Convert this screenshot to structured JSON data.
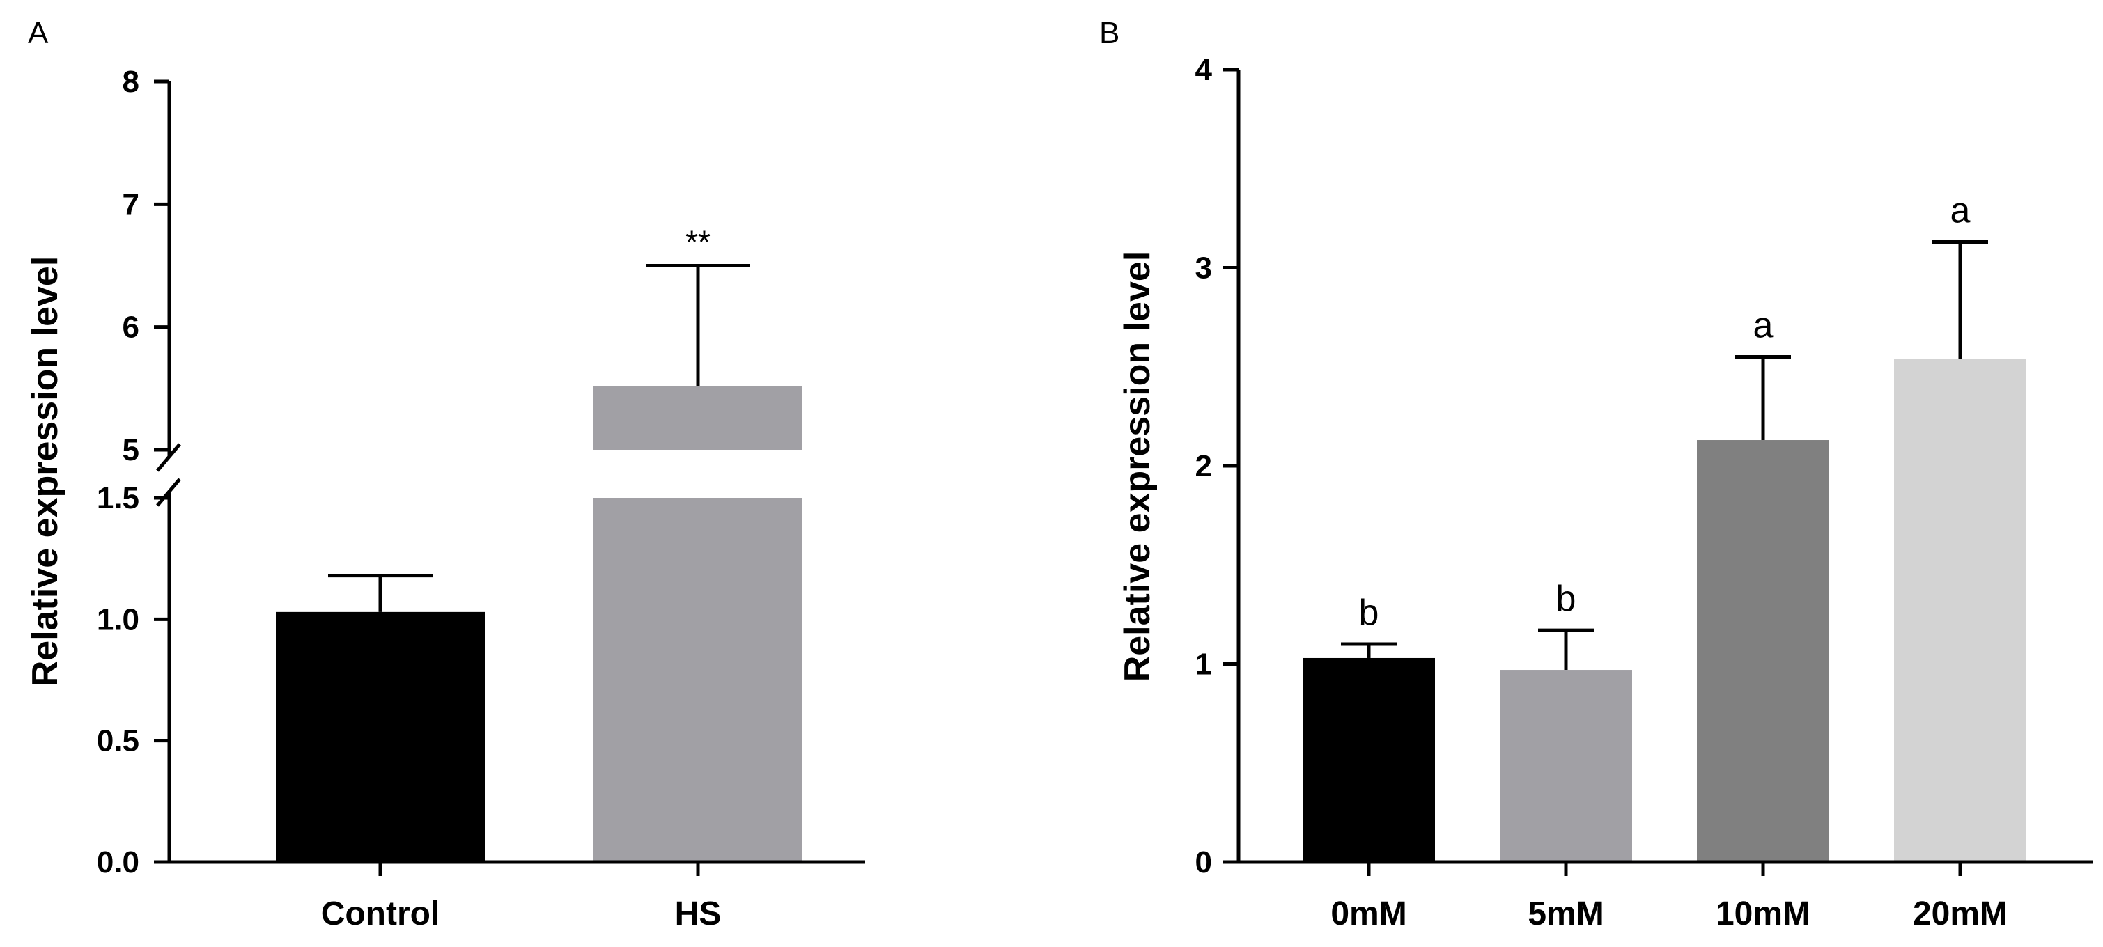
{
  "chart_data": [
    {
      "panel_label": "A",
      "type": "bar",
      "title": "",
      "xlabel": "",
      "ylabel": "Relative expression level",
      "axis_break": {
        "lower_range": [
          0,
          1.5
        ],
        "upper_range": [
          5,
          8
        ]
      },
      "yticks_lower": [
        "0.0",
        "0.5",
        "1.0",
        "1.5"
      ],
      "yticks_upper": [
        "5",
        "6",
        "7",
        "8"
      ],
      "categories": [
        "Control",
        "HS"
      ],
      "values": [
        1.03,
        5.52
      ],
      "error_upper": [
        1.18,
        6.5
      ],
      "annotations": [
        "",
        "**"
      ],
      "colors": [
        "#000000",
        "#a1a0a5"
      ],
      "grid": false
    },
    {
      "panel_label": "B",
      "type": "bar",
      "title": "",
      "xlabel": "",
      "ylabel": "Relative expression level",
      "ylim": [
        0,
        4
      ],
      "yticks": [
        "0",
        "1",
        "2",
        "3",
        "4"
      ],
      "categories": [
        "0mM",
        "5mM",
        "10mM",
        "20mM"
      ],
      "values": [
        1.03,
        0.97,
        2.13,
        2.54
      ],
      "error_upper": [
        1.1,
        1.17,
        2.55,
        3.13
      ],
      "annotations": [
        "b",
        "b",
        "a",
        "a"
      ],
      "colors": [
        "#000000",
        "#a1a0a5",
        "#808080",
        "#d3d3d3"
      ],
      "grid": false
    }
  ]
}
